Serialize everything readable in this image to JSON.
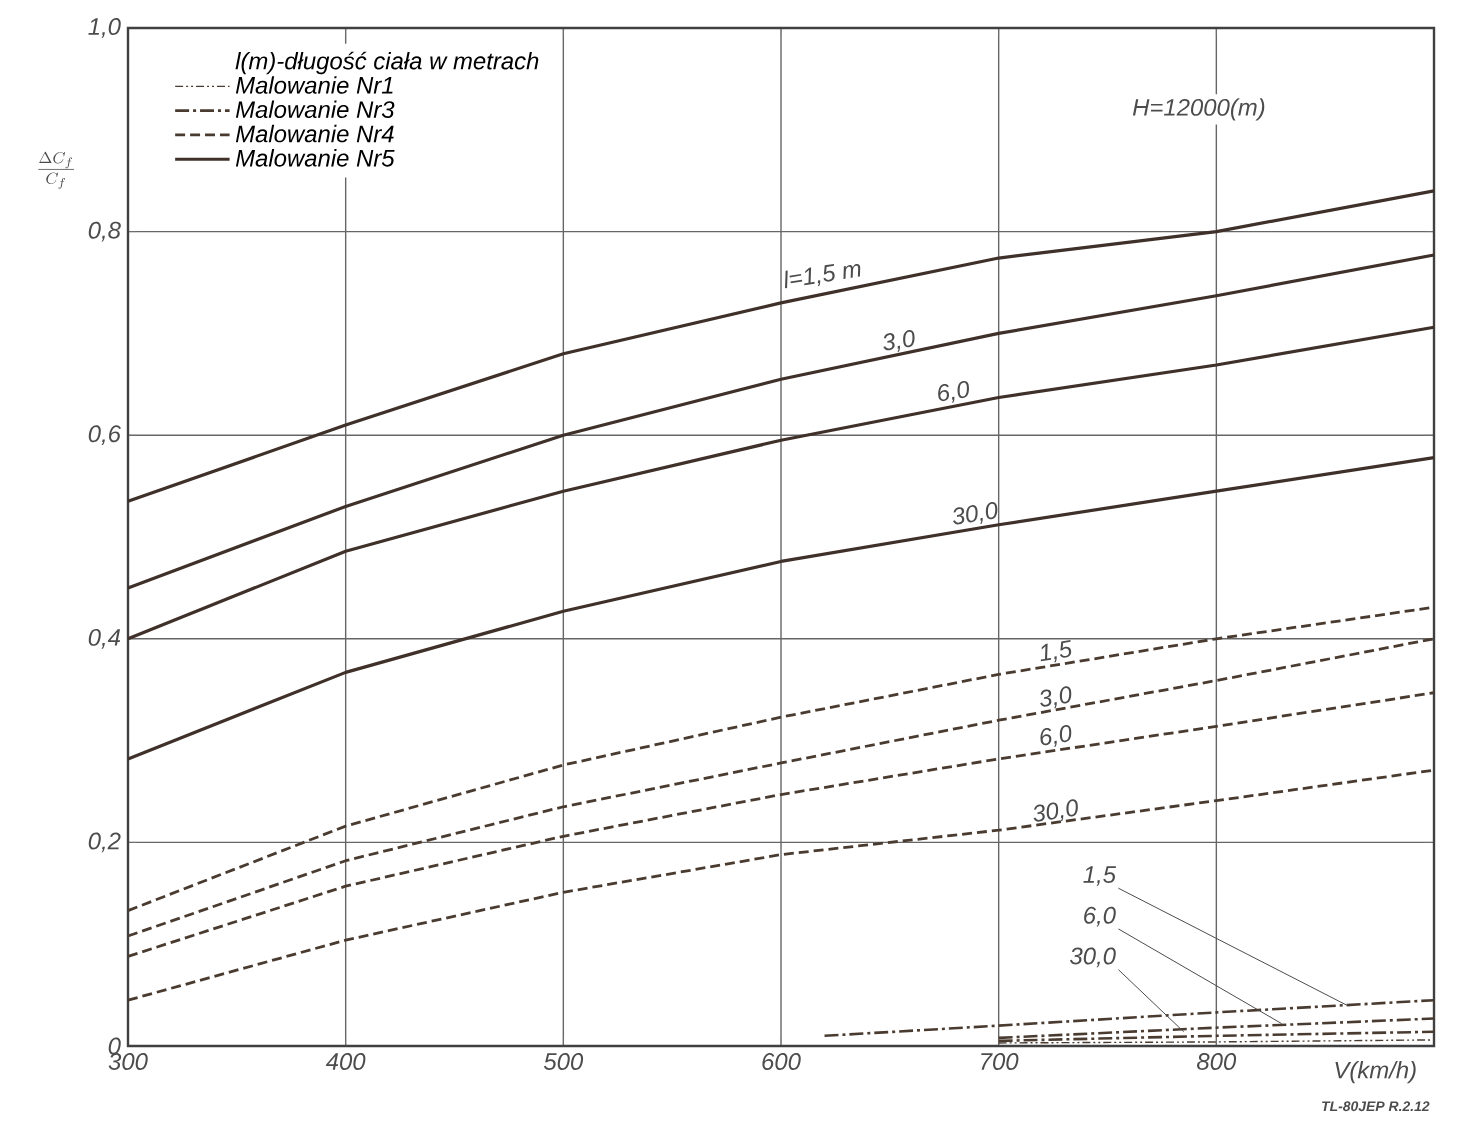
{
  "chart_data": {
    "type": "line",
    "xlabel": "V(km/h)",
    "ylabel": "\\frac{\\Delta C_f}{C_f}",
    "legend_title": "l(m)-długość ciała w metrach",
    "xlim": [
      300,
      900
    ],
    "ylim": [
      0,
      1.0
    ],
    "xticks": [
      300,
      400,
      500,
      600,
      700,
      800
    ],
    "yticks": [
      0,
      {
        "value": 0.2,
        "label": "0,2"
      },
      {
        "value": 0.4,
        "label": "0,4"
      },
      {
        "value": 0.6,
        "label": "0,6"
      },
      {
        "value": 0.8,
        "label": "0,8"
      },
      {
        "value": 1.0,
        "label": "1,0"
      }
    ],
    "grid": true,
    "legend": "top left",
    "series": [
      {
        "name": "Malowanie Nr1",
        "color": "#4a3b30",
        "line_style": "dashdotdot",
        "x": [
          700,
          800,
          900
        ],
        "values": [
          0.003,
          0.004,
          0.006
        ]
      },
      {
        "name": "Malowanie Nr3",
        "color": "#4a3b30",
        "line_style": "dashdot",
        "x": [
          620,
          700,
          800,
          900
        ],
        "values": [
          0.01,
          0.02,
          0.033,
          0.045
        ]
      },
      {
        "color": "#4a3b30",
        "line_style": "dashdot",
        "x": [
          700,
          800,
          900
        ],
        "values": [
          0.008,
          0.018,
          0.027
        ]
      },
      {
        "color": "#4a3b30",
        "line_style": "dashdot",
        "x": [
          700,
          800,
          900
        ],
        "values": [
          0.005,
          0.01,
          0.014
        ]
      },
      {
        "name": "Malowanie Nr4",
        "color": "#4a3b30",
        "line_style": "dashed",
        "x": [
          300,
          400,
          500,
          600,
          700,
          800,
          900
        ],
        "values": [
          0.133,
          0.216,
          0.276,
          0.323,
          0.365,
          0.4,
          0.431
        ]
      },
      {
        "color": "#4a3b30",
        "line_style": "dashed",
        "x": [
          300,
          400,
          500,
          600,
          700,
          800,
          900
        ],
        "values": [
          0.108,
          0.182,
          0.235,
          0.278,
          0.32,
          0.359,
          0.4
        ]
      },
      {
        "color": "#4a3b30",
        "line_style": "dashed",
        "x": [
          300,
          400,
          500,
          600,
          700,
          800,
          900
        ],
        "values": [
          0.088,
          0.157,
          0.206,
          0.247,
          0.282,
          0.314,
          0.347
        ]
      },
      {
        "color": "#4a3b30",
        "line_style": "dashed",
        "x": [
          300,
          400,
          500,
          600,
          700,
          800,
          900
        ],
        "values": [
          0.045,
          0.104,
          0.151,
          0.188,
          0.212,
          0.241,
          0.271
        ]
      },
      {
        "name": "Malowanie Nr5",
        "color": "#3f3029",
        "line_style": "solid",
        "x": [
          300,
          400,
          500,
          600,
          700,
          800,
          900
        ],
        "values": [
          0.535,
          0.61,
          0.68,
          0.73,
          0.774,
          0.8,
          0.84
        ]
      },
      {
        "color": "#3f3029",
        "line_style": "solid",
        "x": [
          300,
          400,
          500,
          600,
          700,
          800,
          900
        ],
        "values": [
          0.45,
          0.53,
          0.6,
          0.655,
          0.7,
          0.737,
          0.777
        ]
      },
      {
        "color": "#3f3029",
        "line_style": "solid",
        "x": [
          300,
          400,
          500,
          600,
          700,
          800,
          900
        ],
        "values": [
          0.4,
          0.486,
          0.545,
          0.595,
          0.637,
          0.669,
          0.706
        ]
      },
      {
        "color": "#3f3029",
        "line_style": "solid",
        "x": [
          300,
          400,
          500,
          600,
          700,
          800,
          900
        ],
        "values": [
          0.282,
          0.367,
          0.427,
          0.476,
          0.512,
          0.545,
          0.578
        ]
      }
    ],
    "annotations": [
      "H=12000(m)",
      "TL-80JEP R.2.12",
      {
        "text": "l=1,5 m",
        "x": 620,
        "y": 0.745
      },
      {
        "text": "3,0",
        "x": 655,
        "y": 0.68
      },
      {
        "text": "6,0",
        "x": 680,
        "y": 0.63
      },
      {
        "text": "30,0",
        "x": 690,
        "y": 0.51
      },
      {
        "text": "1,5",
        "x": 727,
        "y": 0.375
      },
      {
        "text": "3,0",
        "x": 727,
        "y": 0.33
      },
      {
        "text": "6,0",
        "x": 727,
        "y": 0.292
      },
      {
        "text": "30,0",
        "x": 727,
        "y": 0.218
      },
      {
        "text": "1,5",
        "x": 860,
        "y": 0.04
      },
      {
        "text": "6,0",
        "x": 830,
        "y": 0.022
      },
      {
        "text": "30,0",
        "x": 785,
        "y": 0.014
      }
    ]
  }
}
